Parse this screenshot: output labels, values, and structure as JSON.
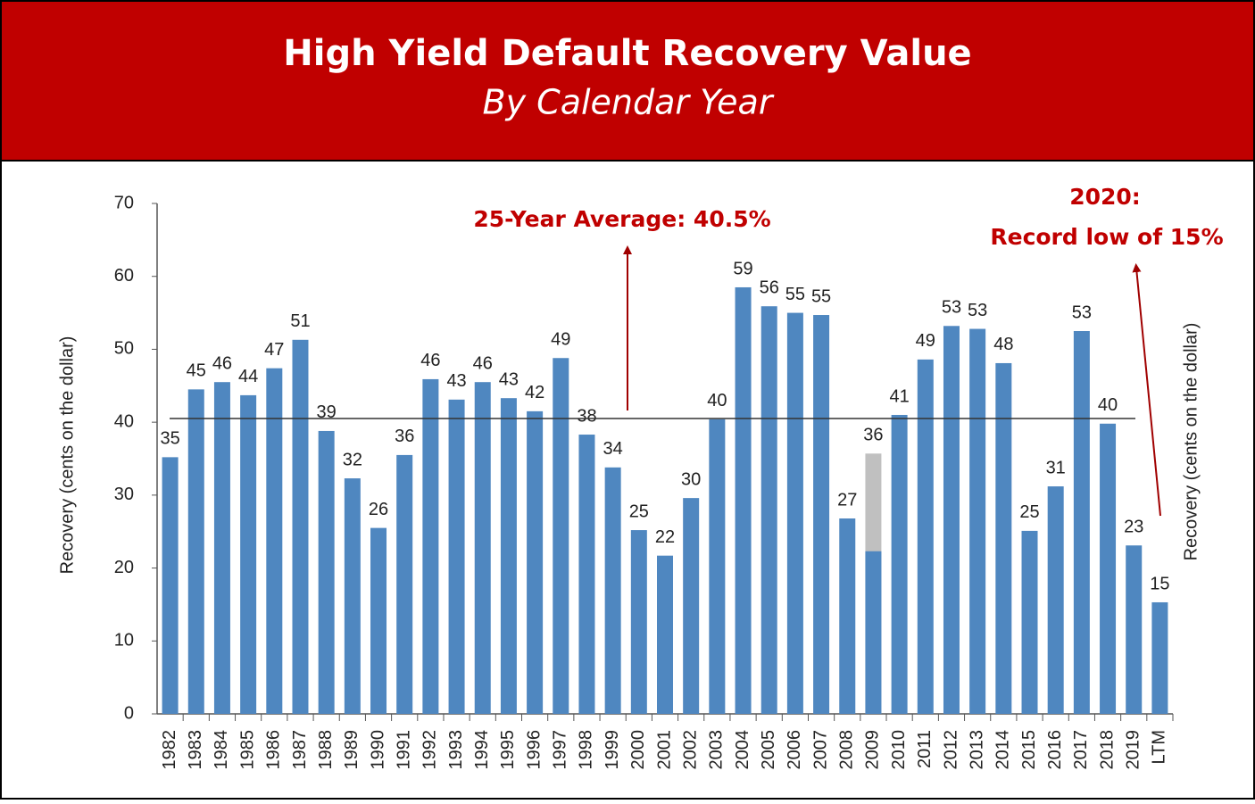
{
  "chart_data": {
    "type": "bar",
    "title": "High Yield Default Recovery Value",
    "subtitle": "By Calendar Year",
    "ylabel": "Recovery (cents on the dollar)",
    "categories": [
      "1982",
      "1983",
      "1984",
      "1985",
      "1986",
      "1987",
      "1988",
      "1989",
      "1990",
      "1991",
      "1992",
      "1993",
      "1994",
      "1995",
      "1996",
      "1997",
      "1998",
      "1999",
      "2000",
      "2001",
      "2002",
      "2003",
      "2004",
      "2005",
      "2006",
      "2007",
      "2008",
      "2009",
      "2010",
      "2011",
      "2012",
      "2013",
      "2014",
      "2015",
      "2016",
      "2017",
      "2018",
      "2019",
      "LTM"
    ],
    "series": [
      {
        "color": "#c0c0c0",
        "values": [
          null,
          null,
          null,
          null,
          null,
          null,
          null,
          null,
          null,
          null,
          null,
          null,
          null,
          null,
          null,
          null,
          null,
          null,
          null,
          null,
          null,
          null,
          null,
          null,
          null,
          null,
          null,
          35.7,
          null,
          null,
          null,
          null,
          null,
          null,
          null,
          null,
          null,
          null,
          null
        ],
        "value_labels": [
          null,
          null,
          null,
          null,
          null,
          null,
          null,
          null,
          null,
          null,
          null,
          null,
          null,
          null,
          null,
          null,
          null,
          null,
          null,
          null,
          null,
          null,
          null,
          null,
          null,
          null,
          null,
          "36",
          null,
          null,
          null,
          null,
          null,
          null,
          null,
          null,
          null,
          null,
          null
        ]
      },
      {
        "color": "#4f87c0",
        "values": [
          35.2,
          44.5,
          45.5,
          43.7,
          47.4,
          51.3,
          38.8,
          32.3,
          25.5,
          35.5,
          45.9,
          43.1,
          45.5,
          43.3,
          41.5,
          48.8,
          38.3,
          33.8,
          25.2,
          21.7,
          29.6,
          40.4,
          58.5,
          55.9,
          55.0,
          54.7,
          26.8,
          22.3,
          41.0,
          48.6,
          53.2,
          52.8,
          48.1,
          25.1,
          31.2,
          52.5,
          39.8,
          23.1,
          15.3
        ],
        "value_labels": [
          "35",
          "45",
          "46",
          "44",
          "47",
          "51",
          "39",
          "32",
          "26",
          "36",
          "46",
          "43",
          "46",
          "43",
          "42",
          "49",
          "38",
          "34",
          "25",
          "22",
          "30",
          "40",
          "59",
          "56",
          "55",
          "55",
          "27",
          null,
          "41",
          "49",
          "53",
          "53",
          "48",
          "25",
          "31",
          "53",
          "40",
          "23",
          "15"
        ]
      }
    ],
    "ylim": [
      0,
      70
    ],
    "yticks": [
      0,
      10,
      20,
      30,
      40,
      50,
      60,
      70
    ],
    "average": 40.5,
    "annotations": [
      "25-Year Average: 40.5%",
      "2020:",
      "Record low of 15%"
    ]
  }
}
